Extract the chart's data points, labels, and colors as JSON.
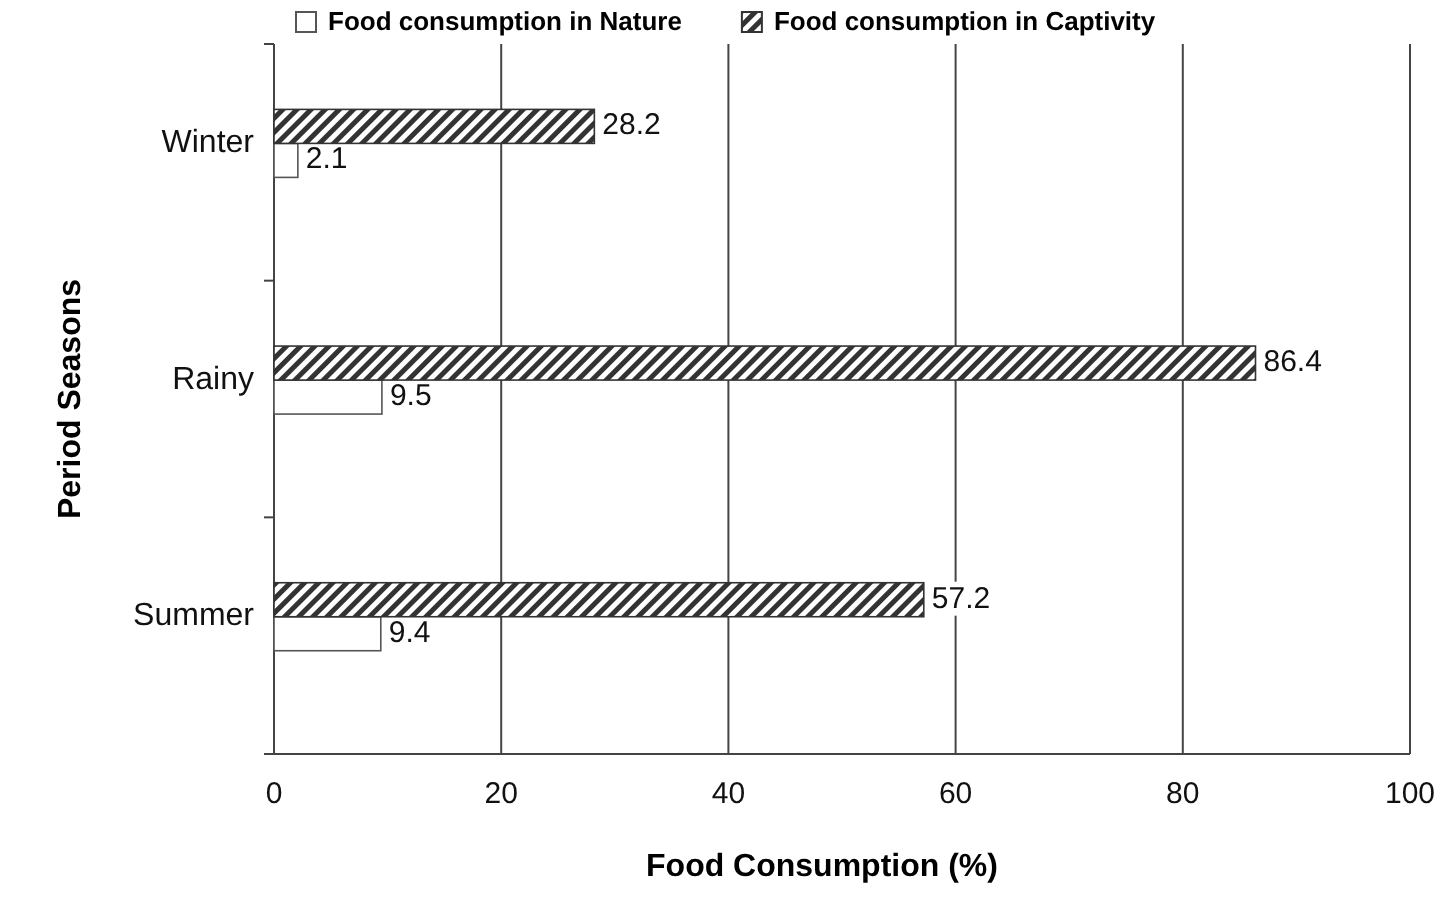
{
  "chart_data": {
    "type": "bar",
    "orientation": "horizontal",
    "xlabel": "Food Consumption (%)",
    "ylabel": "Period  Seasons",
    "categories": [
      "Winter",
      "Rainy",
      "Summer"
    ],
    "series": [
      {
        "name": "Food consumption  in Nature",
        "color": "#ffffff",
        "values": [
          2.1,
          9.5,
          9.4
        ]
      },
      {
        "name": "Food consumption in Captivity",
        "color": "#333333",
        "values": [
          28.2,
          86.4,
          57.2
        ]
      }
    ],
    "xlim": [
      0,
      100
    ],
    "xticks": [
      0,
      20,
      40,
      60,
      80,
      100
    ],
    "grid": "x",
    "legend": "top",
    "data_labels": true
  }
}
